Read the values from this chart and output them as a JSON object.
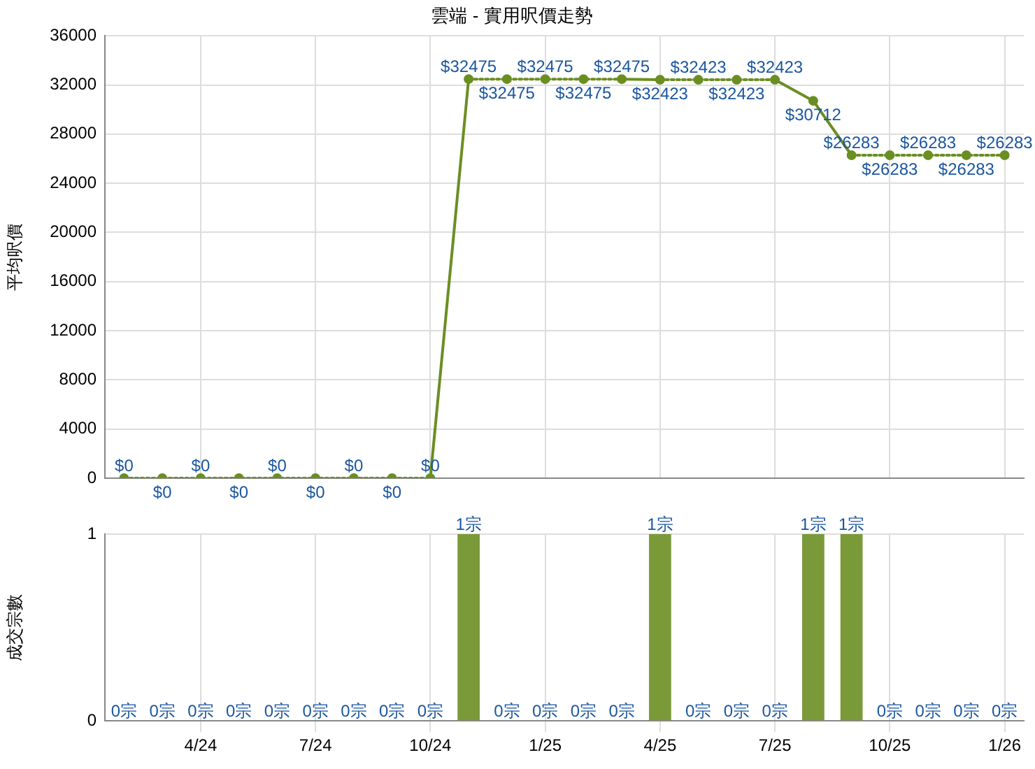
{
  "chart_data": [
    {
      "type": "line",
      "title": "雲端 - 實用呎價走勢",
      "ylabel": "平均呎價",
      "categories": [
        null,
        null,
        null,
        null,
        null,
        null,
        null,
        null,
        null,
        null,
        null,
        null,
        null,
        null,
        null,
        null,
        null,
        null,
        null,
        null,
        null,
        null,
        null,
        null
      ],
      "values": [
        0,
        0,
        0,
        0,
        0,
        0,
        0,
        0,
        0,
        32475,
        32475,
        32475,
        32475,
        32475,
        32423,
        32423,
        32423,
        32423,
        30712,
        26283,
        26283,
        26283,
        26283,
        26283
      ],
      "value_labels": [
        "$0",
        "$0",
        "$0",
        "$0",
        "$0",
        "$0",
        "$0",
        "$0",
        "$0",
        "$32475",
        "$32475",
        "$32475",
        "$32475",
        "$32475",
        "$32423",
        "$32423",
        "$32423",
        "$32423",
        "$30712",
        "$26283",
        "$26283",
        "$26283",
        "$26283",
        "$26283"
      ],
      "color": "#6b8e23",
      "marker": "circle",
      "line_style": "dotted",
      "ylim": [
        0,
        36000
      ],
      "yticks": [
        0,
        4000,
        8000,
        12000,
        16000,
        20000,
        24000,
        28000,
        32000,
        36000
      ],
      "grid": true,
      "tick_labels": "y"
    },
    {
      "type": "bar",
      "ylabel": "成交宗數",
      "categories": [
        null,
        null,
        "4/24",
        null,
        null,
        "7/24",
        null,
        null,
        "10/24",
        null,
        null,
        "1/25",
        null,
        null,
        "4/25",
        null,
        null,
        "7/25",
        null,
        null,
        "10/25",
        null,
        null,
        "1/26"
      ],
      "values": [
        0,
        0,
        0,
        0,
        0,
        0,
        0,
        0,
        0,
        1,
        0,
        0,
        0,
        0,
        1,
        0,
        0,
        0,
        1,
        1,
        0,
        0,
        0,
        0
      ],
      "value_labels": [
        "0宗",
        "0宗",
        "0宗",
        "0宗",
        "0宗",
        "0宗",
        "0宗",
        "0宗",
        "0宗",
        "1宗",
        "0宗",
        "0宗",
        "0宗",
        "0宗",
        "1宗",
        "0宗",
        "0宗",
        "0宗",
        "1宗",
        "1宗",
        "0宗",
        "0宗",
        "0宗",
        "0宗"
      ],
      "color": "#7a9a3a",
      "ylim": [
        0,
        1
      ],
      "yticks": [
        0,
        1
      ],
      "grid": true
    }
  ]
}
